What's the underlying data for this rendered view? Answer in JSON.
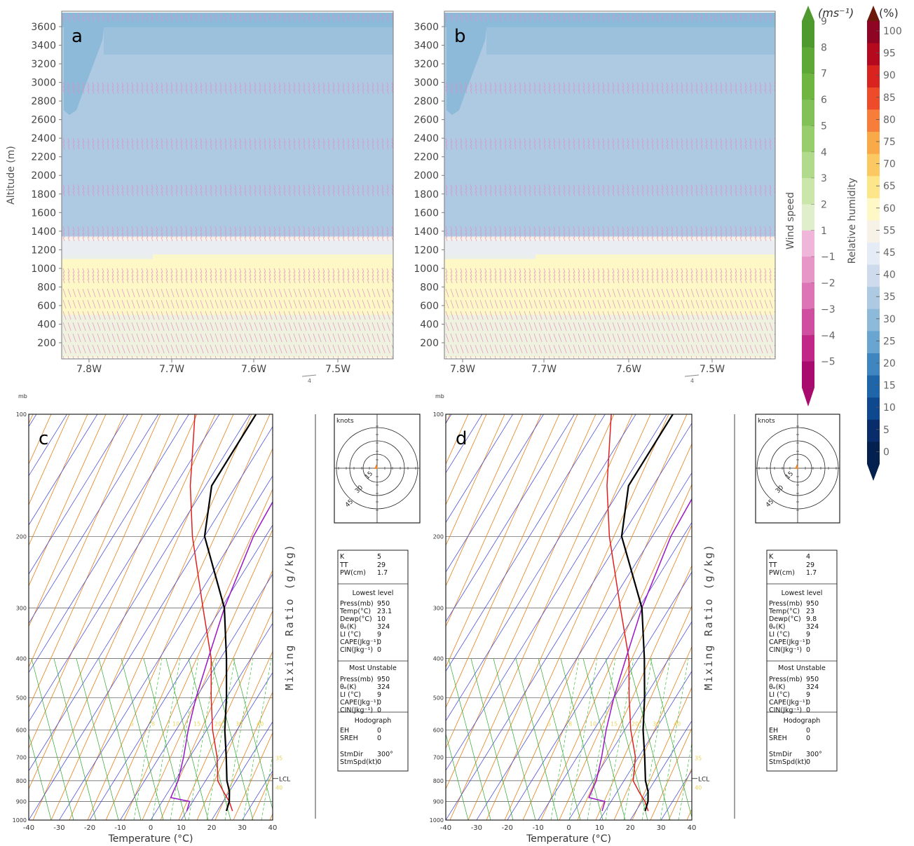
{
  "panels": [
    {
      "letter": "a",
      "ylabel": "Altitude (m)",
      "yticks": [
        200,
        400,
        600,
        800,
        1000,
        1200,
        1400,
        1600,
        1800,
        2000,
        2200,
        2400,
        2600,
        2800,
        3000,
        3200,
        3400,
        3600
      ],
      "xticks": [
        "7.8W",
        "7.7W",
        "7.6W",
        "7.5W"
      ],
      "ref_vector_label": "4"
    },
    {
      "letter": "b",
      "ylabel": "",
      "yticks": [
        200,
        400,
        600,
        800,
        1000,
        1200,
        1400,
        1600,
        1800,
        2000,
        2200,
        2400,
        2600,
        2800,
        3000,
        3200,
        3400,
        3600
      ],
      "xticks": [
        "7.8W",
        "7.7W",
        "7.6W",
        "7.5W"
      ],
      "ref_vector_label": "4"
    }
  ],
  "wind_colorbar": {
    "unit": "(ms⁻¹)",
    "title": "Wind speed",
    "labels": [
      "9",
      "8",
      "7",
      "6",
      "5",
      "4",
      "3",
      "2",
      "1",
      "−1",
      "−2",
      "−3",
      "−4",
      "−5"
    ],
    "colors": [
      "#4e9a2e",
      "#5ea838",
      "#6eb542",
      "#81c157",
      "#98cd6e",
      "#b2da8d",
      "#cbe6ab",
      "#e0efcb",
      "#f0b6da",
      "#e796c8",
      "#dd74b5",
      "#d04e9f",
      "#c02787",
      "#a80a6e"
    ]
  },
  "rh_colorbar": {
    "unit": "(%)",
    "title": "Relative humidity",
    "labels": [
      "100",
      "95",
      "90",
      "85",
      "80",
      "75",
      "70",
      "65",
      "60",
      "55",
      "45",
      "40",
      "35",
      "30",
      "25",
      "20",
      "15",
      "10",
      "5",
      "0"
    ],
    "colors": [
      "#6b1a0a",
      "#8e0422",
      "#b5091f",
      "#d8231f",
      "#ee4b2b",
      "#f77d3b",
      "#f9a948",
      "#fbc862",
      "#fde58a",
      "#fdf8c6",
      "#f7f2e8",
      "#e6ecf5",
      "#cddbed",
      "#aecae3",
      "#8dbad9",
      "#68a5d0",
      "#3f86c1",
      "#1f65aa",
      "#0e488f",
      "#082d6a",
      "#04204f"
    ]
  },
  "skewt_panels": [
    {
      "letter": "c",
      "k": "5",
      "tt": "29",
      "pw": "1.7",
      "lowest": {
        "press": "950",
        "temp": "23.1",
        "dewp": "10",
        "theta": "324",
        "li": "9",
        "cape": "0",
        "cin": "0"
      },
      "unstable": {
        "press": "950",
        "theta": "324",
        "li": "9",
        "cape": "0",
        "cin": "0"
      },
      "hodo": {
        "eh": "0",
        "sreh": "0",
        "stmdir": "300°",
        "stmspd": "0"
      }
    },
    {
      "letter": "d",
      "k": "4",
      "tt": "29",
      "pw": "1.7",
      "lowest": {
        "press": "950",
        "temp": "23",
        "dewp": "9.8",
        "theta": "324",
        "li": "9",
        "cape": "0",
        "cin": "0"
      },
      "unstable": {
        "press": "950",
        "theta": "324",
        "li": "9",
        "cape": "0",
        "cin": "0"
      },
      "hodo": {
        "eh": "0",
        "sreh": "0",
        "stmdir": "300°",
        "stmspd": "0"
      }
    }
  ],
  "skewt_common": {
    "pressure_unit": "mb",
    "pressure_ticks": [
      100,
      200,
      300,
      400,
      500,
      600,
      700,
      800,
      900,
      1000
    ],
    "temp_ticks": [
      -40,
      -30,
      -20,
      -10,
      0,
      10,
      20,
      30,
      40
    ],
    "xlabel": "Temperature (°C)",
    "mixing_ratio_label": "Mixing Ratio (g/kg)",
    "lcl_label": "LCL",
    "hodo_unit": "knots",
    "hodo_rings": [
      "15",
      "30",
      "45"
    ],
    "mixing_ratio_values": [
      "5",
      "8",
      "10",
      "15",
      "20",
      "30",
      "40"
    ],
    "mixing_ratio_extra": [
      "35",
      "40"
    ],
    "table_labels": {
      "k": "K",
      "tt": "TT",
      "pw": "PW(cm)",
      "lowest": "Lowest level",
      "press": "Press(mb)",
      "temp": "Temp(°C)",
      "dewp": "Dewp(°C)",
      "theta": "θₑ(K)",
      "li": "LI (°C)",
      "cape": "CAPE(Jkg⁻¹)",
      "cin": "CIN(Jkg⁻¹)",
      "unstable": "Most Unstable",
      "hodograph": "Hodograph",
      "eh": "EH",
      "sreh": "SREH",
      "stmdir": "StmDir",
      "stmspd": "StmSpd(kt)"
    }
  },
  "chart_data": [
    {
      "type": "heatmap",
      "panel": "a",
      "title": "",
      "xlabel": "",
      "ylabel": "Altitude (m)",
      "x_categories": [
        "7.8W",
        "7.7W",
        "7.6W",
        "7.5W"
      ],
      "xlim": [
        "7.83W",
        "7.43W"
      ],
      "ylim": [
        50,
        3750
      ],
      "series": [
        {
          "name": "Relative humidity",
          "note_unit": "%",
          "layers_by_altitude": [
            {
              "z": [
                50,
                900
              ],
              "rh": 52
            },
            {
              "z": [
                900,
                1150
              ],
              "rh": 55
            },
            {
              "z": [
                1150,
                1350
              ],
              "rh": 45
            },
            {
              "z": [
                1350,
                3600
              ],
              "rh": 30
            },
            {
              "z": [
                3600,
                3750
              ],
              "rh": 25
            }
          ]
        },
        {
          "name": "Wind speed",
          "note_unit": "ms⁻¹",
          "values": [
            -5,
            2
          ]
        }
      ]
    },
    {
      "type": "heatmap",
      "panel": "b",
      "title": "",
      "xlabel": "",
      "ylabel": "",
      "x_categories": [
        "7.8W",
        "7.7W",
        "7.6W",
        "7.5W"
      ],
      "xlim": [
        "7.83W",
        "7.43W"
      ],
      "ylim": [
        50,
        3750
      ],
      "series": [
        {
          "name": "Relative humidity",
          "note_unit": "%",
          "layers_by_altitude": [
            {
              "z": [
                50,
                900
              ],
              "rh": 52
            },
            {
              "z": [
                900,
                1150
              ],
              "rh": 55
            },
            {
              "z": [
                1150,
                1350
              ],
              "rh": 45
            },
            {
              "z": [
                1350,
                3600
              ],
              "rh": 30
            },
            {
              "z": [
                3600,
                3750
              ],
              "rh": 25
            }
          ]
        },
        {
          "name": "Wind speed",
          "note_unit": "ms⁻¹",
          "values": [
            -5,
            2
          ]
        }
      ]
    },
    {
      "type": "line",
      "panel": "c",
      "title": "",
      "xlabel": "Temperature (°C)",
      "ylabel": "mb",
      "xlim": [
        -40,
        40
      ],
      "ylim": [
        1000,
        100
      ],
      "series": [
        {
          "name": "",
          "color": "#e02020",
          "p": [
            950,
            900,
            850,
            800,
            700,
            600,
            500,
            400,
            300,
            200,
            150,
            100
          ],
          "t": [
            25,
            22,
            18,
            14,
            9,
            2,
            -5,
            -13,
            -26,
            -44,
            -55,
            -68
          ]
        },
        {
          "name": "",
          "color": "#9b16c7",
          "p": [
            950,
            900,
            880,
            800,
            700,
            600,
            500,
            400,
            300,
            200,
            150,
            100
          ],
          "t": [
            10,
            9,
            2,
            1,
            -2,
            -6,
            -10,
            -14,
            -19,
            -24,
            -25,
            -22
          ]
        },
        {
          "name": "",
          "color": "#000000",
          "p": [
            950,
            900,
            850,
            800,
            700,
            600,
            500,
            400,
            300,
            200,
            150,
            100
          ],
          "t": [
            23,
            22,
            20,
            17,
            12,
            6,
            0,
            -8,
            -19,
            -40,
            -48,
            -48
          ]
        }
      ]
    },
    {
      "type": "line",
      "panel": "d",
      "title": "",
      "xlabel": "Temperature (°C)",
      "ylabel": "mb",
      "xlim": [
        -40,
        40
      ],
      "ylim": [
        1000,
        100
      ],
      "series": [
        {
          "name": "",
          "color": "#e02020",
          "p": [
            950,
            900,
            850,
            800,
            700,
            600,
            500,
            400,
            300,
            200,
            150,
            100
          ],
          "t": [
            24,
            21,
            17,
            13,
            9,
            2,
            -5,
            -13,
            -26,
            -44,
            -55,
            -68
          ]
        },
        {
          "name": "",
          "color": "#9b16c7",
          "p": [
            950,
            900,
            880,
            800,
            700,
            600,
            500,
            400,
            300,
            200,
            150,
            100
          ],
          "t": [
            9,
            8,
            2,
            1,
            -2,
            -6,
            -10,
            -14,
            -19,
            -24,
            -25,
            -22
          ]
        },
        {
          "name": "",
          "color": "#000000",
          "p": [
            950,
            900,
            850,
            800,
            700,
            600,
            500,
            400,
            300,
            200,
            150,
            100
          ],
          "t": [
            23,
            22,
            20,
            17,
            12,
            6,
            0,
            -8,
            -19,
            -40,
            -48,
            -48
          ]
        }
      ]
    }
  ]
}
